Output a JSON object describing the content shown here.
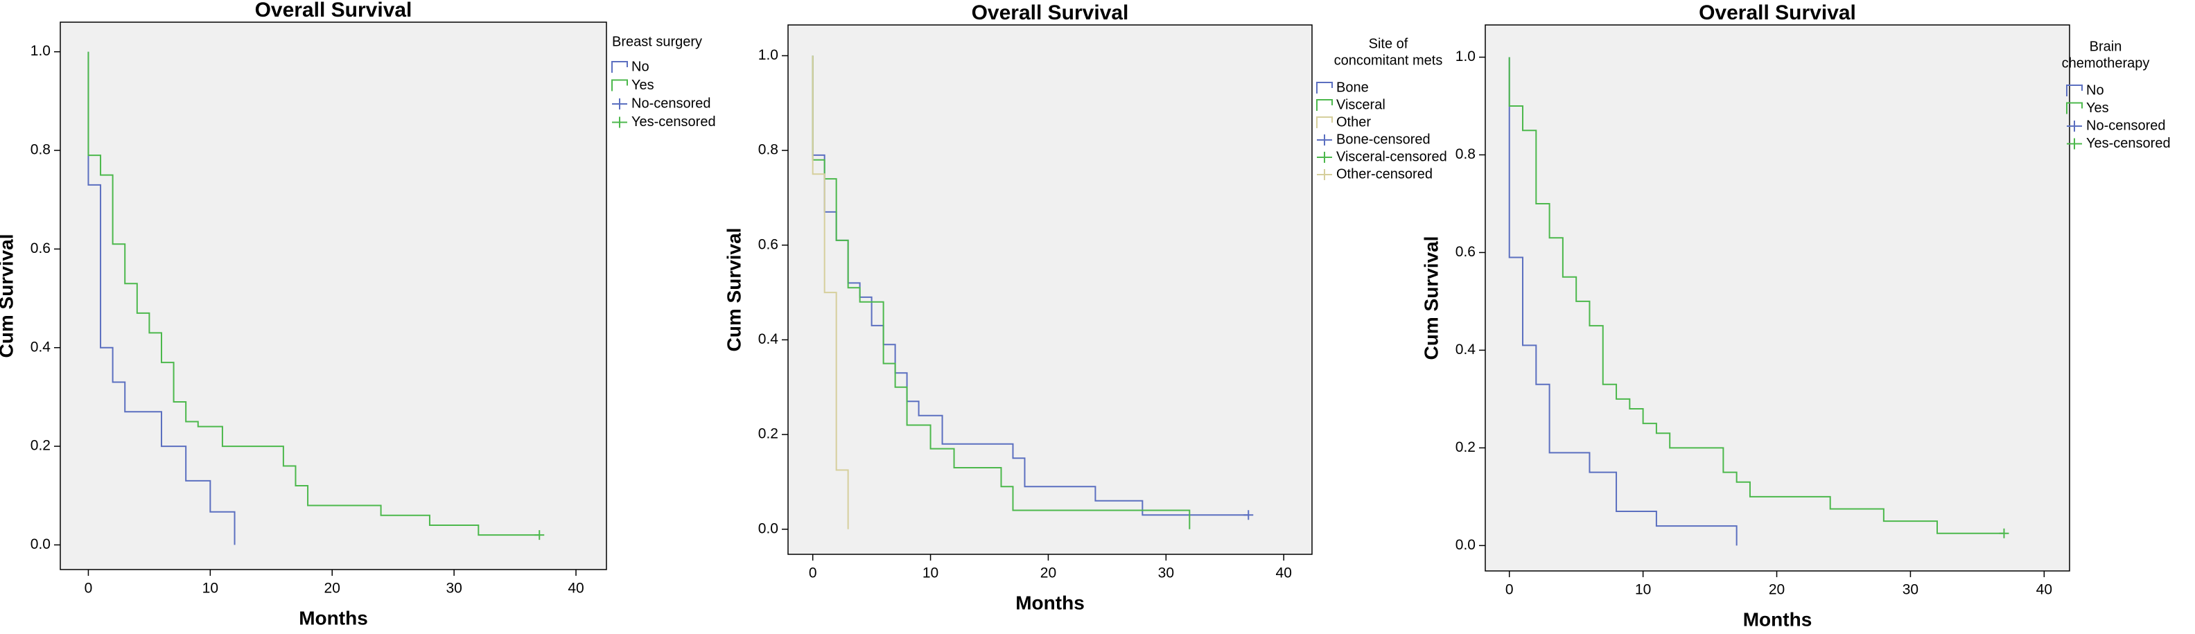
{
  "chart_data": [
    {
      "type": "step",
      "title": "Overall Survival",
      "xlabel": "Months",
      "ylabel": "Cum Survival",
      "legend_title": [
        "Breast surgery"
      ],
      "xlim": [
        -2.3,
        42.5
      ],
      "ylim": [
        -0.05,
        1.06
      ],
      "xticks": [
        0,
        10,
        20,
        30,
        40
      ],
      "yticks": [
        {
          "value": 0,
          "label": "0.0"
        },
        0.2,
        0.4,
        0.6,
        0.8,
        {
          "value": 1,
          "label": "1.0"
        }
      ],
      "series": [
        {
          "name": "No",
          "color": "#5b6fc0",
          "x": [
            0,
            0,
            1,
            2,
            3,
            6,
            8,
            10,
            12
          ],
          "values": [
            1,
            0.73,
            0.4,
            0.33,
            0.27,
            0.2,
            0.13,
            0.067,
            0
          ]
        },
        {
          "name": "Yes",
          "color": "#4cb84c",
          "x": [
            0,
            0,
            1,
            2,
            3,
            4,
            5,
            6,
            7,
            8,
            9,
            11,
            16,
            17,
            18,
            24,
            28,
            32,
            37
          ],
          "values": [
            1,
            0.79,
            0.75,
            0.61,
            0.53,
            0.47,
            0.43,
            0.37,
            0.29,
            0.25,
            0.24,
            0.2,
            0.16,
            0.12,
            0.08,
            0.06,
            0.04,
            0.02,
            0.02
          ]
        },
        {
          "name": "No-censored",
          "color": "#5b6fc0",
          "marker": "+",
          "x": [],
          "values": []
        },
        {
          "name": "Yes-censored",
          "color": "#4cb84c",
          "marker": "+",
          "x": [
            37
          ],
          "values": [
            0.02
          ]
        }
      ]
    },
    {
      "type": "step",
      "title": "Overall Survival",
      "xlabel": "Months",
      "ylabel": "Cum Survival",
      "legend_title": [
        "Site of",
        "concomitant mets"
      ],
      "xlim": [
        -2.1,
        42.4
      ],
      "ylim": [
        -0.053,
        1.065
      ],
      "xticks": [
        0,
        10,
        20,
        30,
        40
      ],
      "yticks": [
        {
          "value": 0,
          "label": "0.0"
        },
        0.2,
        0.4,
        0.6,
        0.8,
        {
          "value": 1,
          "label": "1.0"
        }
      ],
      "series": [
        {
          "name": "Bone",
          "color": "#5b6fc0",
          "x": [
            0,
            0,
            1,
            2,
            3,
            4,
            5,
            6,
            7,
            8,
            9,
            11,
            17,
            18,
            24,
            28,
            37
          ],
          "values": [
            1,
            0.79,
            0.67,
            0.61,
            0.52,
            0.49,
            0.43,
            0.39,
            0.33,
            0.27,
            0.24,
            0.18,
            0.15,
            0.09,
            0.06,
            0.03,
            0.03
          ]
        },
        {
          "name": "Visceral",
          "color": "#4cb84c",
          "x": [
            0,
            0,
            1,
            2,
            3,
            4,
            6,
            7,
            8,
            10,
            12,
            16,
            17,
            32
          ],
          "values": [
            1,
            0.78,
            0.74,
            0.61,
            0.51,
            0.48,
            0.35,
            0.3,
            0.22,
            0.17,
            0.13,
            0.09,
            0.04,
            0
          ]
        },
        {
          "name": "Other",
          "color": "#d6cf9c",
          "x": [
            0,
            0,
            1,
            2,
            3
          ],
          "values": [
            1,
            0.75,
            0.5,
            0.125,
            0
          ]
        },
        {
          "name": "Bone-censored",
          "color": "#5b6fc0",
          "marker": "+",
          "x": [
            37
          ],
          "values": [
            0.03
          ]
        },
        {
          "name": "Visceral-censored",
          "color": "#4cb84c",
          "marker": "+",
          "x": [],
          "values": []
        },
        {
          "name": "Other-censored",
          "color": "#d6cf9c",
          "marker": "+",
          "x": [],
          "values": []
        }
      ]
    },
    {
      "type": "step",
      "title": "Overall Survival",
      "xlabel": "Months",
      "ylabel": "Cum Survival",
      "legend_title": [
        "Brain",
        "chemotherapy"
      ],
      "xlim": [
        -1.8,
        41.9
      ],
      "ylim": [
        -0.052,
        1.066
      ],
      "xticks": [
        0,
        10,
        20,
        30,
        40
      ],
      "yticks": [
        {
          "value": 0,
          "label": "0.0"
        },
        0.2,
        0.4,
        0.6,
        0.8,
        {
          "value": 1,
          "label": "1.0"
        }
      ],
      "series": [
        {
          "name": "No",
          "color": "#5b6fc0",
          "x": [
            0,
            0,
            1,
            2,
            3,
            6,
            8,
            11,
            17
          ],
          "values": [
            1,
            0.59,
            0.41,
            0.33,
            0.19,
            0.15,
            0.07,
            0.04,
            0
          ]
        },
        {
          "name": "Yes",
          "color": "#4cb84c",
          "x": [
            0,
            0,
            1,
            2,
            3,
            4,
            5,
            6,
            7,
            8,
            9,
            10,
            11,
            12,
            16,
            17,
            18,
            24,
            28,
            32,
            37
          ],
          "values": [
            1,
            0.9,
            0.85,
            0.7,
            0.63,
            0.55,
            0.5,
            0.45,
            0.33,
            0.3,
            0.28,
            0.25,
            0.23,
            0.2,
            0.15,
            0.13,
            0.1,
            0.075,
            0.05,
            0.025,
            0.025
          ]
        },
        {
          "name": "No-censored",
          "color": "#5b6fc0",
          "marker": "+",
          "x": [],
          "values": []
        },
        {
          "name": "Yes-censored",
          "color": "#4cb84c",
          "marker": "+",
          "x": [
            37
          ],
          "values": [
            0.025
          ]
        }
      ]
    }
  ]
}
